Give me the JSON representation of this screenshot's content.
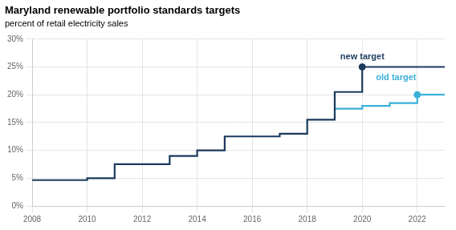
{
  "chart_data": {
    "type": "line",
    "title": "Maryland renewable portfolio standards targets",
    "subtitle": "percent of retail electricity sales",
    "series": [
      {
        "color": "#1b3a5c",
        "line_style": "step",
        "x": [
          2008,
          2009,
          2010,
          2011,
          2011,
          2012,
          2013,
          2013,
          2014,
          2015,
          2015,
          2016,
          2017,
          2017,
          2018,
          2019,
          2019,
          2020,
          2023
        ],
        "values": [
          4.65,
          4.65,
          5.0,
          5.0,
          7.5,
          7.5,
          9.0,
          9.0,
          10.0,
          10.0,
          12.5,
          12.5,
          13.0,
          13.0,
          15.5,
          18.0,
          20.5,
          25.0,
          25.0
        ],
        "highlight": {
          "x": 2020,
          "y": 25.0
        }
      },
      {
        "color": "#3ab0d8",
        "line_style": "step",
        "x": [
          2019,
          2020,
          2020,
          2021,
          2021,
          2022,
          2023
        ],
        "values": [
          17.5,
          17.5,
          18.0,
          18.0,
          18.5,
          20.0,
          20.0
        ],
        "highlight": {
          "x": 2022,
          "y": 20.0
        }
      }
    ],
    "annotations": [
      {
        "text": "new target",
        "x": 2019.2,
        "y": 26.0,
        "color": "#1b3a5c"
      },
      {
        "text": "old target",
        "x": 2020.5,
        "y": 22.2,
        "color": "#3ab0d8"
      }
    ],
    "xlim": [
      2008,
      2023
    ],
    "ylim": [
      0,
      30
    ],
    "xticks": [
      2008,
      2010,
      2012,
      2014,
      2016,
      2018,
      2020,
      2022
    ],
    "yticks": [
      {
        "value": 0,
        "label": "0%"
      },
      {
        "value": 5,
        "label": "5%"
      },
      {
        "value": 10,
        "label": "10%"
      },
      {
        "value": 15,
        "label": "15%"
      },
      {
        "value": 20,
        "label": "20%"
      },
      {
        "value": 25,
        "label": "25%"
      },
      {
        "value": 30,
        "label": "30%"
      }
    ],
    "grid": true
  }
}
